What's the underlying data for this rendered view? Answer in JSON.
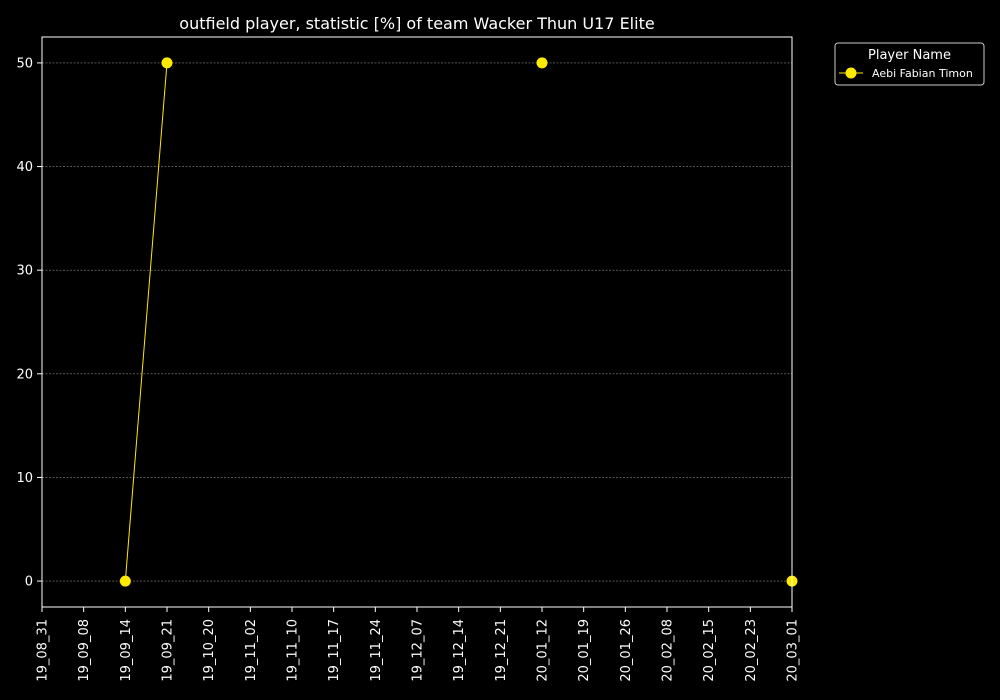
{
  "chart_data": {
    "type": "line",
    "title": "outfield player, statistic [%] of team Wacker Thun U17 Elite",
    "xlabel": "",
    "ylabel": "",
    "categories": [
      "19_08_31",
      "19_09_08",
      "19_09_14",
      "19_09_21",
      "19_10_20",
      "19_11_02",
      "19_11_10",
      "19_11_17",
      "19_11_24",
      "19_12_07",
      "19_12_14",
      "19_12_21",
      "20_01_12",
      "20_01_19",
      "20_01_26",
      "20_02_08",
      "20_02_15",
      "20_02_23",
      "20_03_01"
    ],
    "yticks": [
      0,
      10,
      20,
      30,
      40,
      50
    ],
    "ylim": [
      -2.5,
      52.5
    ],
    "grid": "y-dashed",
    "legend": {
      "title": "Player Name",
      "placement": "outside-top-right"
    },
    "series": [
      {
        "name": "Aebi Fabian Timon",
        "color": "#ffea00",
        "values": [
          null,
          null,
          0,
          50,
          null,
          null,
          null,
          null,
          null,
          null,
          null,
          null,
          50,
          null,
          null,
          null,
          null,
          null,
          0
        ]
      }
    ]
  },
  "colors": {
    "background": "#000000",
    "foreground": "#ffffff",
    "grid": "#888888",
    "series": "#ffea00"
  }
}
